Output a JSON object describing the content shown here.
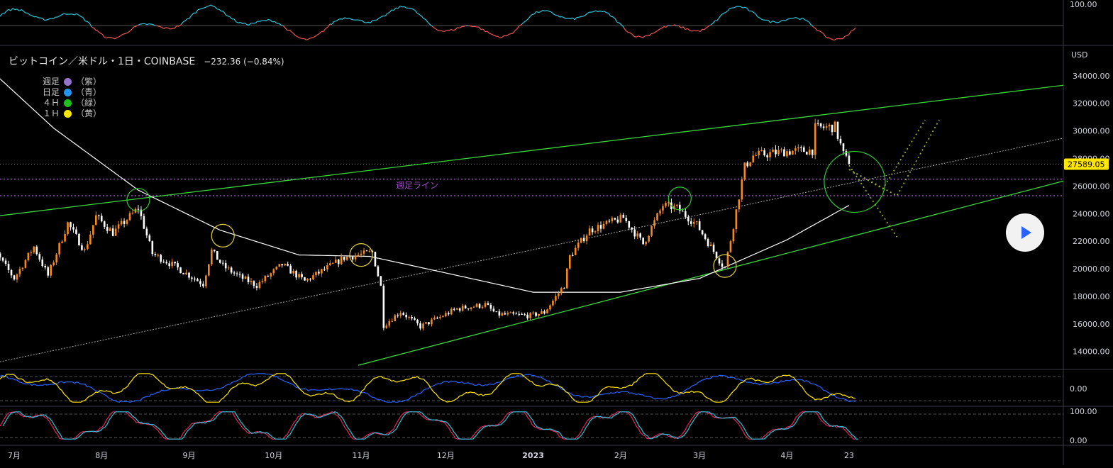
{
  "header": {
    "title": "ビットコイン／米ドル・1日・COINBASE",
    "change": "−232.36 (−0.84%)"
  },
  "legend": [
    {
      "label": "週足",
      "paren": "（紫）",
      "color": "#9575cd"
    },
    {
      "label": "日足",
      "paren": "（青）",
      "color": "#2196f3"
    },
    {
      "label": "４Ｈ",
      "paren": "（緑）",
      "color": "#1fbf1f"
    },
    {
      "label": "１Ｈ",
      "paren": "（黄）",
      "color": "#ffe600"
    }
  ],
  "annotations": {
    "weekly_line_label": "週足ライン"
  },
  "colors": {
    "up": "#f5891f",
    "down": "#ffffff",
    "channel": "#39d839",
    "ma": "#ffffff",
    "weekly_line": "#a04fc8",
    "price_label_bg": "#ffe600"
  },
  "chart_data": [
    {
      "type": "candlestick",
      "title": "ビットコイン／米ドル・1日・COINBASE",
      "currency_label": "USD",
      "y_ticks": [
        "14000.00",
        "16000.00",
        "18000.00",
        "20000.00",
        "22000.00",
        "24000.00",
        "26000.00",
        "28000.00",
        "30000.00",
        "32000.00",
        "34000.00"
      ],
      "ylim": [
        12700,
        36200
      ],
      "x_ticks": [
        "7月",
        "8月",
        "9月",
        "10月",
        "11月",
        "12月",
        "2023",
        "2月",
        "3月",
        "4月",
        "23"
      ],
      "last_price": "27589.05",
      "weekly_lines": [
        26500,
        25300
      ],
      "close_path": [
        [
          "06-20",
          20500
        ],
        [
          "06-25",
          21000
        ],
        [
          "07-01",
          19300
        ],
        [
          "07-08",
          21600
        ],
        [
          "07-13",
          19500
        ],
        [
          "07-20",
          23300
        ],
        [
          "07-26",
          21300
        ],
        [
          "07-30",
          23800
        ],
        [
          "08-05",
          22600
        ],
        [
          "08-14",
          24400
        ],
        [
          "08-19",
          21100
        ],
        [
          "08-26",
          20300
        ],
        [
          "09-06",
          18900
        ],
        [
          "09-09",
          21300
        ],
        [
          "09-13",
          20200
        ],
        [
          "09-19",
          19400
        ],
        [
          "09-25",
          18800
        ],
        [
          "10-04",
          20300
        ],
        [
          "10-12",
          19100
        ],
        [
          "10-26",
          20800
        ],
        [
          "11-05",
          21200
        ],
        [
          "11-08",
          18700
        ],
        [
          "11-09",
          15900
        ],
        [
          "11-15",
          16900
        ],
        [
          "11-22",
          15800
        ],
        [
          "12-05",
          17100
        ],
        [
          "12-15",
          17400
        ],
        [
          "12-19",
          16700
        ],
        [
          "12-31",
          16600
        ],
        [
          "01-05",
          16850
        ],
        [
          "01-12",
          18800
        ],
        [
          "01-14",
          20900
        ],
        [
          "01-21",
          22800
        ],
        [
          "02-02",
          23700
        ],
        [
          "02-09",
          21800
        ],
        [
          "02-16",
          24600
        ],
        [
          "02-21",
          24400
        ],
        [
          "02-28",
          23200
        ],
        [
          "03-09",
          20300
        ],
        [
          "03-10",
          20100
        ],
        [
          "03-12",
          22100
        ],
        [
          "03-17",
          27400
        ],
        [
          "03-20",
          28200
        ],
        [
          "03-31",
          28500
        ],
        [
          "04-10",
          28600
        ],
        [
          "04-11",
          30200
        ],
        [
          "04-18",
          30300
        ],
        [
          "04-21",
          28300
        ],
        [
          "04-23",
          27589
        ]
      ],
      "moving_average": [
        [
          "06-20",
          34900
        ],
        [
          "07-15",
          30200
        ],
        [
          "08-14",
          25700
        ],
        [
          "09-12",
          22800
        ],
        [
          "10-10",
          21000
        ],
        [
          "11-04",
          20900
        ],
        [
          "12-01",
          19700
        ],
        [
          "01-01",
          18300
        ],
        [
          "02-01",
          18300
        ],
        [
          "03-01",
          19300
        ],
        [
          "04-01",
          22100
        ],
        [
          "04-23",
          24600
        ]
      ],
      "channel": {
        "upper": [
          [
            "06-20",
            23700
          ],
          [
            "04-23",
            31400
          ]
        ],
        "lower": [
          [
            "10-31",
            13000
          ],
          [
            "04-23",
            22300
          ]
        ],
        "mid_dotted": [
          [
            "06-20",
            13000
          ],
          [
            "04-23",
            26200
          ]
        ]
      },
      "highlight_circles": [
        {
          "date": "08-14",
          "price": 25000,
          "color": "green"
        },
        {
          "date": "09-13",
          "price": 22400,
          "color": "yellow"
        },
        {
          "date": "11-01",
          "price": 21000,
          "color": "yellow"
        },
        {
          "date": "02-22",
          "price": 25100,
          "color": "green"
        },
        {
          "date": "03-10",
          "price": 20200,
          "color": "yellow"
        },
        {
          "date": "04-23",
          "price": 26300,
          "color": "green"
        }
      ],
      "projections": [
        [
          [
            "04-23",
            27500
          ],
          [
            "05-10",
            22300
          ]
        ],
        [
          [
            "04-23",
            27200
          ],
          [
            "05-05",
            25800
          ],
          [
            "05-20",
            30800
          ]
        ],
        [
          [
            "04-23",
            27200
          ],
          [
            "05-10",
            25300
          ],
          [
            "05-25",
            30800
          ]
        ]
      ]
    },
    {
      "type": "line",
      "position": "top",
      "y_ticks": [
        "100.00"
      ],
      "series": [
        {
          "color_up": "#26c6da",
          "color_down": "#ef5350"
        }
      ]
    },
    {
      "type": "line",
      "position": "lower-1",
      "y_ticks": [
        "0.00"
      ],
      "series": [
        {
          "color": "#2962ff"
        },
        {
          "color": "#ffe600"
        }
      ]
    },
    {
      "type": "line",
      "position": "lower-2",
      "y_ticks": [
        "100.00",
        "0.00"
      ],
      "series": [
        {
          "color": "#26c6da"
        },
        {
          "color": "#ef1f5a"
        }
      ]
    }
  ]
}
